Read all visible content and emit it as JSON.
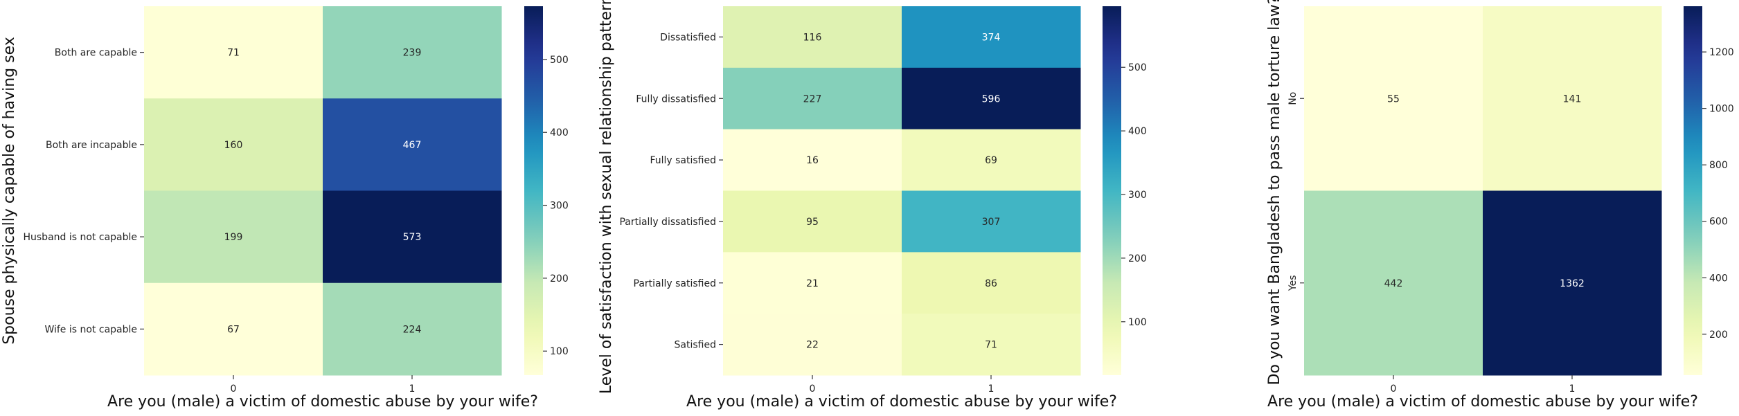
{
  "chart_data": [
    {
      "type": "heatmap",
      "xlabel": "Are you (male) a victim of domestic abuse by your wife?",
      "ylabel": "Spouse physically capable of having sex",
      "x_categories": [
        "0",
        "1"
      ],
      "y_categories": [
        "Both are capable",
        "Both are incapable",
        "Husband is not capable",
        "Wife is not capable"
      ],
      "values": [
        [
          71,
          239
        ],
        [
          160,
          467
        ],
        [
          199,
          573
        ],
        [
          67,
          224
        ]
      ],
      "colormap": "YlGnBu",
      "vmin": 67,
      "vmax": 573,
      "colorbar_ticks": [
        100,
        200,
        300,
        400,
        500
      ]
    },
    {
      "type": "heatmap",
      "xlabel": "Are you (male) a victim of domestic abuse by your wife?",
      "ylabel": "Level of satisfaction with sexual relationship patterns",
      "x_categories": [
        "0",
        "1"
      ],
      "y_categories": [
        "Dissatisfied",
        "Fully dissatisfied",
        "Fully satisfied",
        "Partially dissatisfied",
        "Partially satisfied",
        "Satisfied"
      ],
      "values": [
        [
          116,
          374
        ],
        [
          227,
          596
        ],
        [
          16,
          69
        ],
        [
          95,
          307
        ],
        [
          21,
          86
        ],
        [
          22,
          71
        ]
      ],
      "colormap": "YlGnBu",
      "vmin": 16,
      "vmax": 596,
      "colorbar_ticks": [
        100,
        200,
        300,
        400,
        500
      ]
    },
    {
      "type": "heatmap",
      "xlabel": "Are you (male) a victim of domestic abuse by your wife?",
      "ylabel": "Do you want Bangladesh to pass male torture law?",
      "x_categories": [
        "0",
        "1"
      ],
      "y_categories": [
        "No",
        "Yes"
      ],
      "y_tick_rotation": "vertical",
      "values": [
        [
          55,
          141
        ],
        [
          442,
          1362
        ]
      ],
      "colormap": "YlGnBu",
      "vmin": 55,
      "vmax": 1362,
      "colorbar_ticks": [
        200,
        400,
        600,
        800,
        1000,
        1200
      ]
    }
  ]
}
